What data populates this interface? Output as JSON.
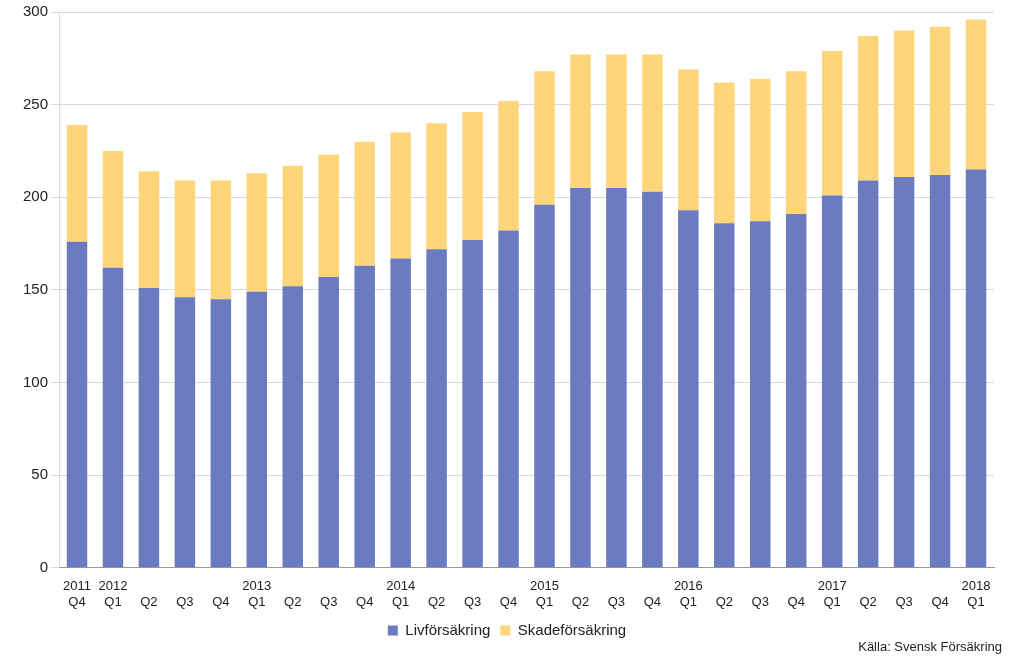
{
  "chart_data": {
    "type": "bar",
    "stacked": true,
    "categories": [
      [
        "2011",
        "Q4"
      ],
      [
        "2012",
        "Q1"
      ],
      [
        null,
        "Q2"
      ],
      [
        null,
        "Q3"
      ],
      [
        null,
        "Q4"
      ],
      [
        "2013",
        "Q1"
      ],
      [
        null,
        "Q2"
      ],
      [
        null,
        "Q3"
      ],
      [
        null,
        "Q4"
      ],
      [
        "2014",
        "Q1"
      ],
      [
        null,
        "Q2"
      ],
      [
        null,
        "Q3"
      ],
      [
        null,
        "Q4"
      ],
      [
        "2015",
        "Q1"
      ],
      [
        null,
        "Q2"
      ],
      [
        null,
        "Q3"
      ],
      [
        null,
        "Q4"
      ],
      [
        "2016",
        "Q1"
      ],
      [
        null,
        "Q2"
      ],
      [
        null,
        "Q3"
      ],
      [
        null,
        "Q4"
      ],
      [
        "2017",
        "Q1"
      ],
      [
        null,
        "Q2"
      ],
      [
        null,
        "Q3"
      ],
      [
        null,
        "Q4"
      ],
      [
        "2018",
        "Q1"
      ]
    ],
    "series": [
      {
        "name": "Livförsäkring",
        "color": "#6a7bbf",
        "values": [
          176,
          162,
          151,
          146,
          145,
          149,
          152,
          157,
          163,
          167,
          172,
          177,
          182,
          196,
          205,
          205,
          203,
          193,
          186,
          187,
          191,
          201,
          209,
          211,
          212,
          215
        ]
      },
      {
        "name": "Skadeförsäkring",
        "color": "#ffd57a",
        "values": [
          63,
          63,
          63,
          63,
          64,
          64,
          65,
          66,
          67,
          68,
          68,
          69,
          70,
          72,
          72,
          72,
          74,
          76,
          76,
          77,
          77,
          78,
          78,
          79,
          80,
          81
        ]
      }
    ],
    "ylim": [
      0,
      300
    ],
    "yticks": [
      0,
      50,
      100,
      150,
      200,
      250,
      300
    ],
    "grid": true,
    "legend": "bottom",
    "annotations": [
      "Källa: Svensk Försäkring"
    ]
  }
}
